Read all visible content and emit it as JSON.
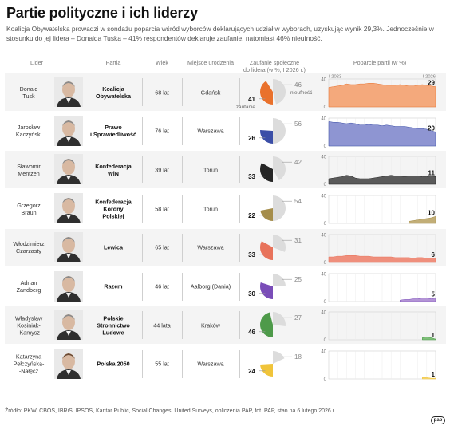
{
  "title": "Partie polityczne i ich liderzy",
  "intro": "Koalicja Obywatelska prowadzi w sondażu poparcia wśród wyborców deklarujących udział w wyborach, uzyskując wynik 29,3%. Jednocześnie w stosunku do jej lidera – Donalda Tuska – 41% respondentów deklaruje zaufanie, natomiast 46% nieufność.",
  "headers": {
    "leader": "Lider",
    "party": "Partia",
    "age": "Wiek",
    "birthplace": "Miejsce urodzenia",
    "trust": "Zaufanie społeczne\ndo lidera (w %, I 2026 r.)",
    "support": "Poparcie partii (w %)"
  },
  "labels": {
    "trust": "zaufanie",
    "distrust": "nieufność",
    "start": "I 2023",
    "end": "I 2026"
  },
  "colors": {
    "trust_bg": "#dcdcdc",
    "text_gray": "#777777"
  },
  "source": "Źródło: PKW, CBOS, IBRiS, IPSOS, Kantar Public, Social Changes, United Surveys, obliczenia PAP, fot. PAP, stan na 6 lutego 2026 r.",
  "logo": "pap",
  "rows": [
    {
      "leader": "Donald\nTusk",
      "party": "Koalicja\nObywatelska",
      "age": "68 lat",
      "city": "Gdańsk",
      "trust": "41",
      "distrust": "46",
      "support": "29",
      "color": "#f4a97c",
      "dark": "#e9712c",
      "photo": "tusk"
    },
    {
      "leader": "Jarosław\nKaczyński",
      "party": "Prawo\ni Sprawiedliwość",
      "age": "76 lat",
      "city": "Warszawa",
      "trust": "26",
      "distrust": "56",
      "support": "20",
      "color": "#8e95d2",
      "dark": "#3b4ea7",
      "photo": "kaczynski"
    },
    {
      "leader": "Sławomir\nMentzen",
      "party": "Konfederacja\nWiN",
      "age": "39 lat",
      "city": "Toruń",
      "trust": "33",
      "distrust": "42",
      "support": "11",
      "color": "#5a5a5a",
      "dark": "#262626",
      "photo": "mentzen"
    },
    {
      "leader": "Grzegorz\nBraun",
      "party": "Konfederacja\nKorony\nPolskiej",
      "age": "58 lat",
      "city": "Toruń",
      "trust": "22",
      "distrust": "54",
      "support": "10",
      "color": "#c2ae77",
      "dark": "#a58d4a",
      "photo": "braun"
    },
    {
      "leader": "Włodzimierz\nCzarzasty",
      "party": "Lewica",
      "age": "65 lat",
      "city": "Warszawa",
      "trust": "33",
      "distrust": "31",
      "support": "6",
      "color": "#ef8f7c",
      "dark": "#e8735b",
      "photo": "czarzasty"
    },
    {
      "leader": "Adrian\nZandberg",
      "party": "Razem",
      "age": "46 lat",
      "city": "Aalborg (Dania)",
      "trust": "30",
      "distrust": "25",
      "support": "5",
      "color": "#b394d6",
      "dark": "#7a4db8",
      "photo": "zandberg"
    },
    {
      "leader": "Władysław\nKosiniak-\n-Kamysz",
      "party": "Polskie\nStronnictwo\nLudowe",
      "age": "44 lata",
      "city": "Kraków",
      "trust": "46",
      "distrust": "27",
      "support": "1",
      "color": "#7fbf7a",
      "dark": "#4e9a4a",
      "photo": "kosiniak"
    },
    {
      "leader": "Katarzyna\nPełczyńska-\n-Nałęcz",
      "party": "Polska 2050",
      "age": "55 lat",
      "city": "Warszawa",
      "trust": "24",
      "distrust": "18",
      "support": "1",
      "color": "#f6d776",
      "dark": "#f0c43a",
      "photo": "pelczynska"
    }
  ],
  "chart_data": {
    "type": "area",
    "title": "Poparcie partii (w %)",
    "x_range": [
      "I 2023",
      "I 2026"
    ],
    "ylim": [
      0,
      40
    ],
    "y_ticks": [
      0,
      40
    ],
    "series": [
      {
        "name": "Koalicja Obywatelska",
        "values": [
          28,
          29,
          30,
          31,
          33,
          32,
          32,
          33,
          33,
          34,
          34,
          33,
          32,
          31,
          31,
          31,
          32,
          31,
          30,
          30,
          31,
          32,
          31,
          30,
          29
        ]
      },
      {
        "name": "Prawo i Sprawiedliwość",
        "values": [
          35,
          34,
          34,
          33,
          32,
          33,
          32,
          30,
          30,
          31,
          30,
          30,
          29,
          30,
          29,
          28,
          28,
          28,
          27,
          26,
          25,
          25,
          24,
          22,
          20
        ]
      },
      {
        "name": "Konfederacja WiN",
        "values": [
          8,
          9,
          10,
          11,
          13,
          12,
          9,
          8,
          8,
          8,
          9,
          10,
          11,
          12,
          13,
          12,
          12,
          11,
          12,
          12,
          12,
          11,
          11,
          12,
          11
        ]
      },
      {
        "name": "Konfederacja Korony Polskiej",
        "values": [
          null,
          null,
          null,
          null,
          null,
          null,
          null,
          null,
          null,
          null,
          null,
          null,
          null,
          null,
          null,
          null,
          null,
          null,
          3,
          4,
          5,
          6,
          7,
          8,
          10
        ]
      },
      {
        "name": "Lewica",
        "values": [
          8,
          8,
          9,
          9,
          10,
          10,
          10,
          9,
          9,
          9,
          8,
          8,
          8,
          8,
          8,
          7,
          7,
          7,
          7,
          6,
          7,
          7,
          6,
          6,
          6
        ]
      },
      {
        "name": "Razem",
        "values": [
          null,
          null,
          null,
          null,
          null,
          null,
          null,
          null,
          null,
          null,
          null,
          null,
          null,
          null,
          null,
          null,
          2,
          3,
          3,
          4,
          4,
          5,
          5,
          4,
          5
        ]
      },
      {
        "name": "Polskie Stronnictwo Ludowe",
        "values": [
          null,
          null,
          null,
          null,
          null,
          null,
          null,
          null,
          null,
          null,
          null,
          null,
          null,
          null,
          null,
          null,
          null,
          null,
          null,
          null,
          null,
          3,
          4,
          3,
          1
        ]
      },
      {
        "name": "Polska 2050",
        "values": [
          null,
          null,
          null,
          null,
          null,
          null,
          null,
          null,
          null,
          null,
          null,
          null,
          null,
          null,
          null,
          null,
          null,
          null,
          null,
          null,
          null,
          2,
          2,
          1,
          1
        ]
      }
    ],
    "trust": [
      {
        "name": "Donald Tusk",
        "trust": 41,
        "distrust": 46
      },
      {
        "name": "Jarosław Kaczyński",
        "trust": 26,
        "distrust": 56
      },
      {
        "name": "Sławomir Mentzen",
        "trust": 33,
        "distrust": 42
      },
      {
        "name": "Grzegorz Braun",
        "trust": 22,
        "distrust": 54
      },
      {
        "name": "Włodzimierz Czarzasty",
        "trust": 33,
        "distrust": 31
      },
      {
        "name": "Adrian Zandberg",
        "trust": 30,
        "distrust": 25
      },
      {
        "name": "Władysław Kosiniak-Kamysz",
        "trust": 46,
        "distrust": 27
      },
      {
        "name": "Katarzyna Pełczyńska-Nałęcz",
        "trust": 24,
        "distrust": 18
      }
    ]
  }
}
